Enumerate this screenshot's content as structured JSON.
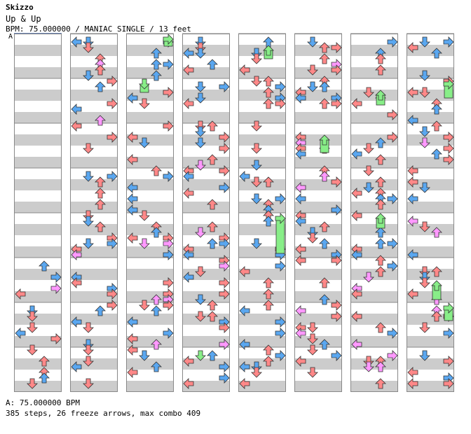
{
  "header": {
    "artist": "Skizzo",
    "title": "Up & Up",
    "meta": "BPM: 75.000000 / MANIAC SINGLE / 13 feet"
  },
  "bpm_label": "A",
  "footer": {
    "bpm_line": "A: 75.000000 BPM",
    "stats": "385 steps, 26 freeze arrows, max combo 409"
  },
  "colors": {
    "red": "#ff8888",
    "blue": "#5aa7f0",
    "pink": "#ff99ff",
    "green": "#88ee88",
    "gray": "#cccccc",
    "border": "#888888"
  },
  "chart": {
    "columns": 8,
    "measures_per_column": 8,
    "arrows": [
      [
        7,
        2,
        "R",
        0.1
      ],
      [
        7,
        3,
        "L",
        0.1
      ],
      [
        7,
        4,
        "D",
        0.1
      ],
      [
        7,
        5,
        "L",
        0.1
      ],
      [
        7,
        6,
        "D",
        0.1
      ],
      [
        7,
        7,
        "D",
        0.1
      ],
      [
        7,
        8,
        "R",
        0.1
      ],
      [
        7,
        9,
        "U",
        0.1
      ],
      [
        7,
        10,
        "L",
        0.1
      ],
      [
        7,
        11,
        "D",
        0.1
      ],
      [
        7,
        12,
        "R",
        0.1
      ],
      [
        7,
        13,
        "U",
        0.1
      ],
      [
        7,
        14,
        "L",
        0.1
      ],
      [
        7,
        15,
        "D",
        0.1
      ],
      [
        1,
        0,
        "U",
        0.0
      ],
      [
        1,
        2,
        "R",
        0.0
      ],
      [
        1,
        3,
        "L",
        0.0
      ],
      [
        1,
        5,
        "D",
        0.0
      ],
      [
        1,
        7,
        "U",
        0.0
      ],
      [
        1,
        9,
        "L",
        0.0
      ],
      [
        1,
        11,
        "R",
        0.0
      ],
      [
        1,
        13,
        "D",
        0.0
      ],
      [
        1,
        15,
        "U",
        0.0
      ],
      [
        1,
        16,
        "L",
        0.0
      ],
      [
        1,
        18,
        "R",
        0.0
      ],
      [
        1,
        20,
        "D",
        0.0
      ],
      [
        1,
        22,
        "L",
        0.0
      ],
      [
        1,
        24,
        "R",
        0.0
      ],
      [
        1,
        26,
        "U",
        0.0
      ],
      [
        1,
        28,
        "D",
        0.0
      ],
      [
        1,
        30,
        "L",
        0.0
      ],
      [
        1,
        32,
        "R",
        0.0
      ],
      [
        1,
        34,
        "U",
        0.0
      ],
      [
        1,
        36,
        "D",
        0.0
      ],
      [
        1,
        38,
        "L",
        0.0
      ],
      [
        1,
        40,
        "R",
        0.0
      ],
      [
        1,
        42,
        "U",
        0.0
      ],
      [
        1,
        44,
        "D",
        0.0
      ],
      [
        1,
        46,
        "L",
        0.0
      ],
      [
        1,
        48,
        "R",
        0.0
      ],
      [
        1,
        50,
        "D",
        0.0
      ],
      [
        1,
        52,
        "U",
        0.0
      ],
      [
        1,
        54,
        "L",
        0.0
      ],
      [
        1,
        56,
        "R",
        0.0
      ],
      [
        1,
        58,
        "U",
        0.0
      ],
      [
        1,
        60,
        "D",
        0.0
      ],
      [
        1,
        62,
        "L",
        0.0
      ]
    ]
  }
}
